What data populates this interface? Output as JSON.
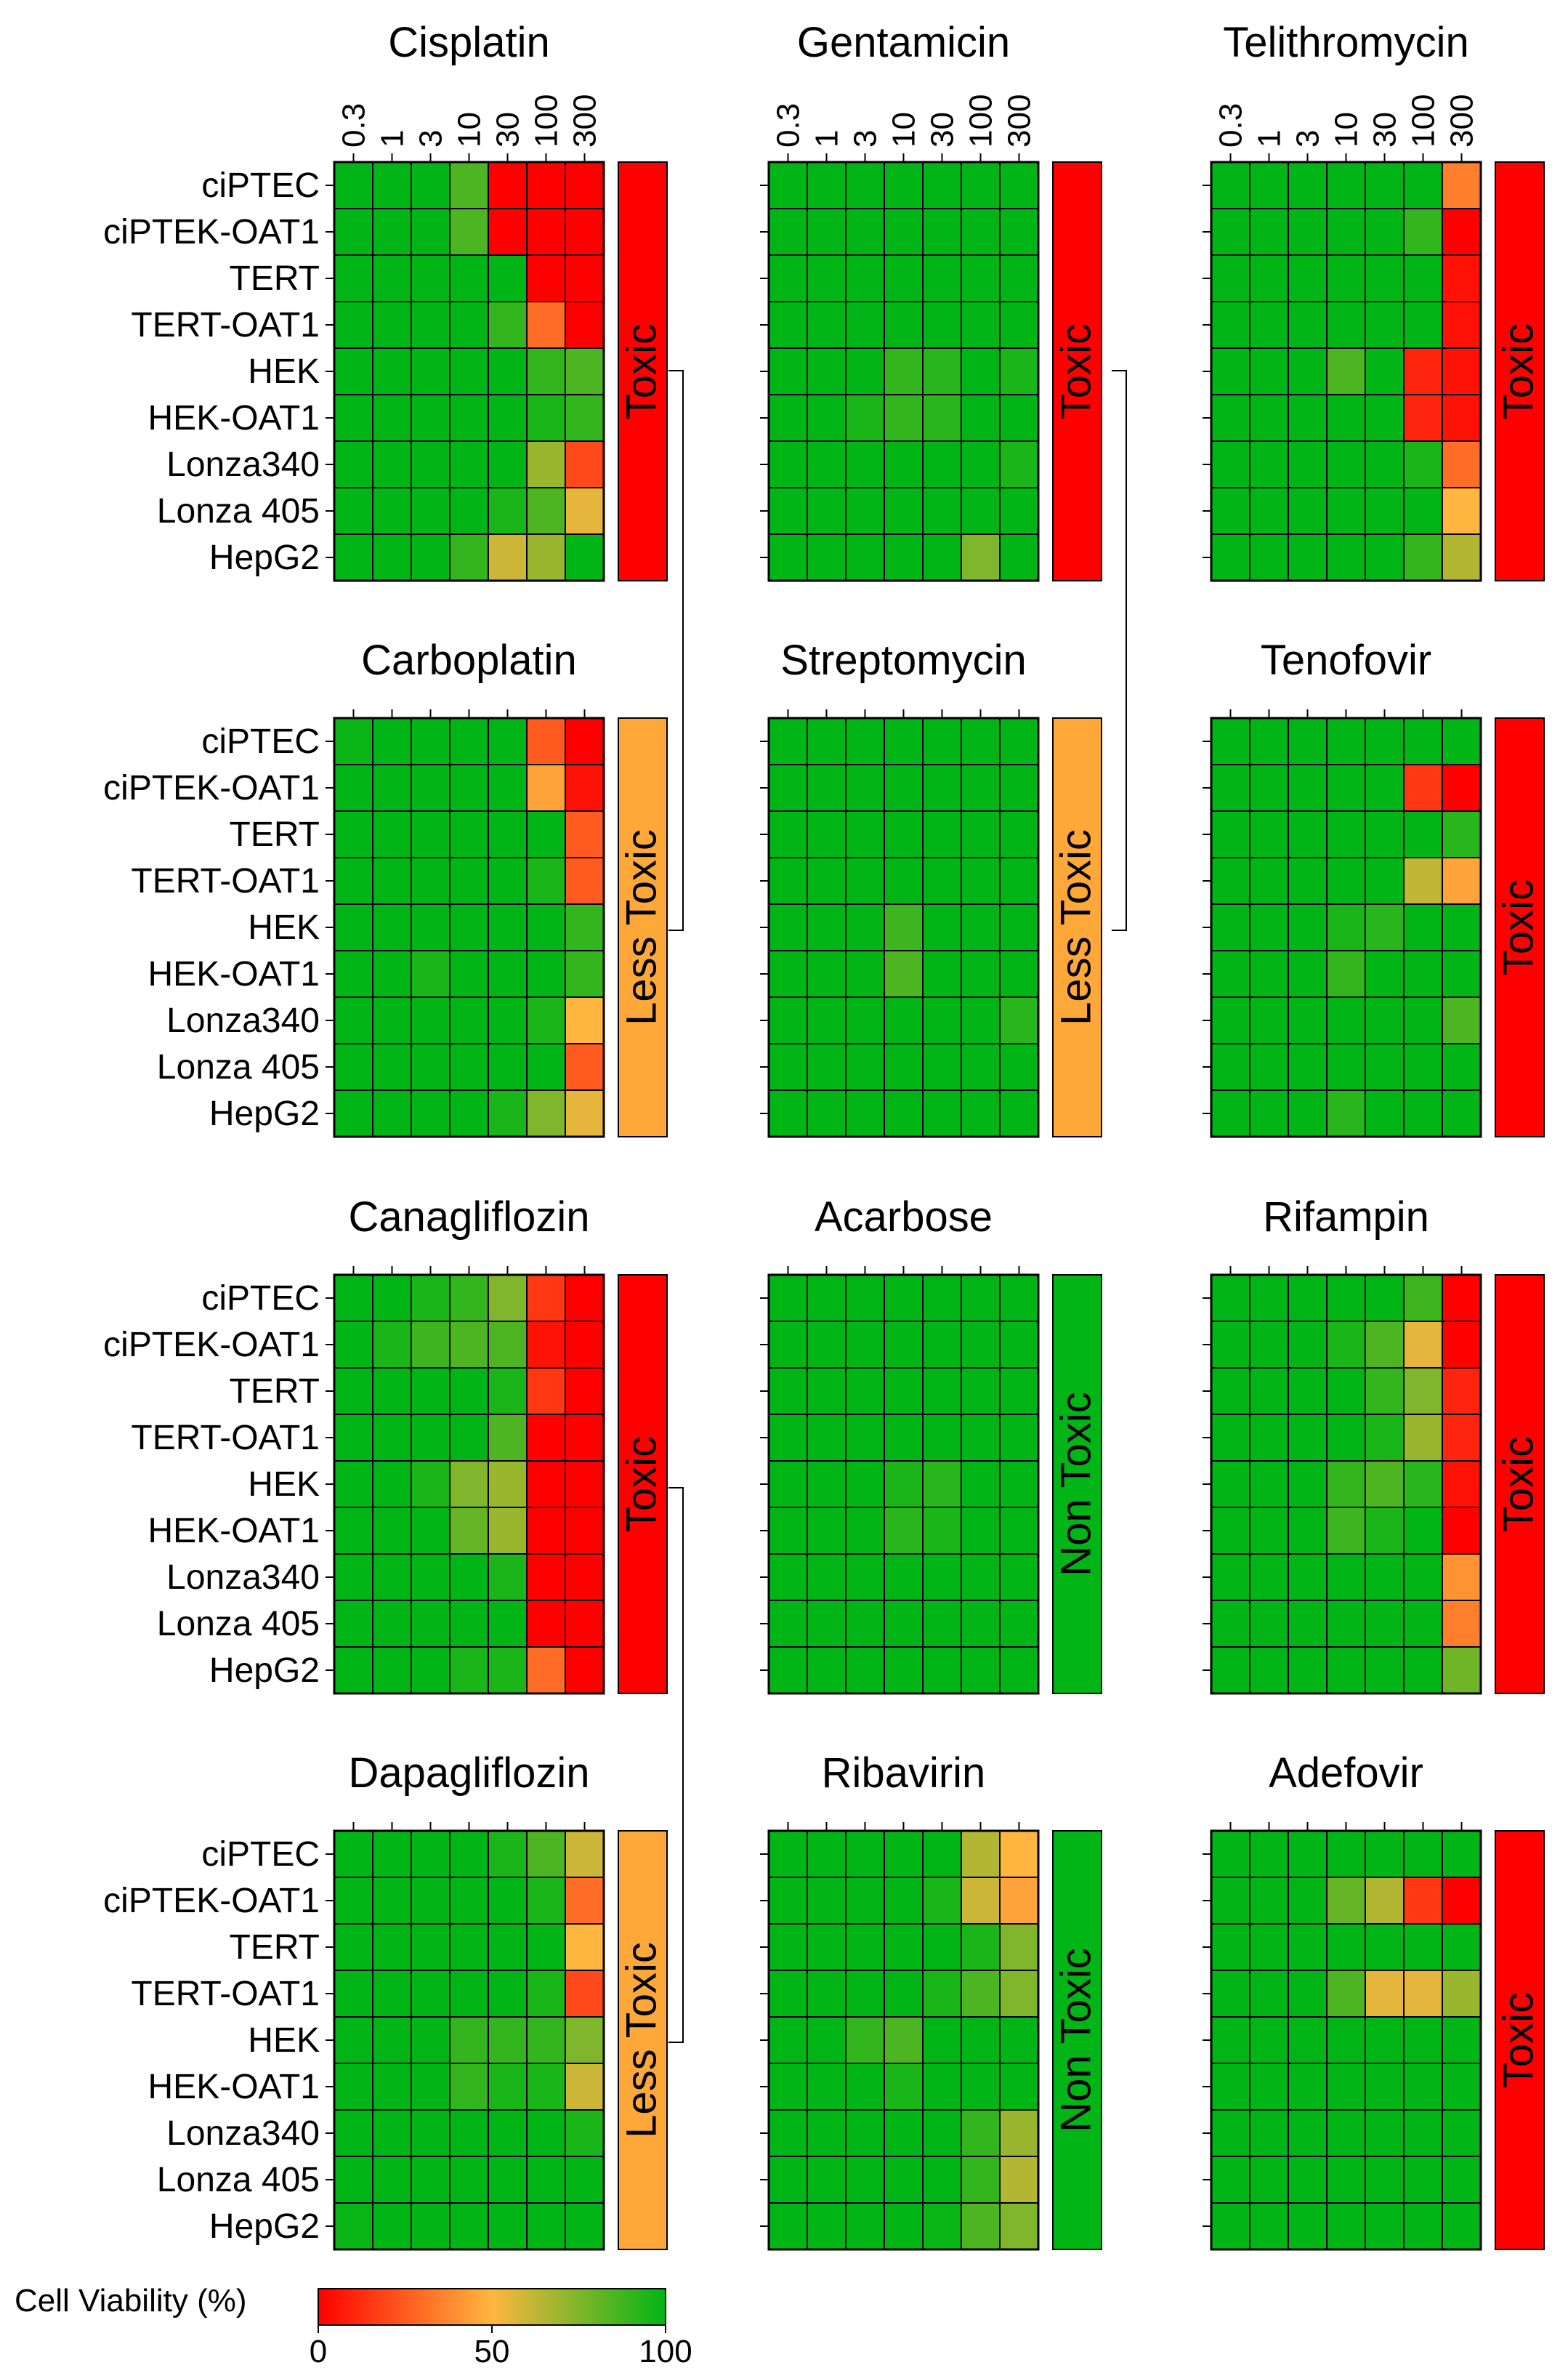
{
  "chart_data": {
    "type": "heatmap",
    "rows": [
      "ciPTEC",
      "ciPTEK-OAT1",
      "TERT",
      "TERT-OAT1",
      "HEK",
      "HEK-OAT1",
      "Lonza340",
      "Lonza 405",
      "HepG2"
    ],
    "columns": [
      "0.3",
      "1",
      "3",
      "10",
      "30",
      "100",
      "300"
    ],
    "colorbar": {
      "label": "Cell Viability (%)",
      "ticks": [
        "0",
        "50",
        "100"
      ],
      "range": [
        0,
        100
      ]
    },
    "category_colors": {
      "Toxic": "#ff0000",
      "Less Toxic": "#ffa83a",
      "Non Toxic": "#00b515"
    },
    "panels": [
      {
        "title": "Cisplatin",
        "category": "Toxic",
        "values": [
          [
            100,
            100,
            100,
            85,
            0,
            0,
            0
          ],
          [
            100,
            100,
            100,
            85,
            0,
            0,
            0
          ],
          [
            100,
            100,
            100,
            100,
            100,
            0,
            0
          ],
          [
            100,
            100,
            100,
            100,
            90,
            30,
            0
          ],
          [
            100,
            100,
            100,
            100,
            100,
            90,
            85
          ],
          [
            100,
            100,
            100,
            100,
            100,
            95,
            90
          ],
          [
            100,
            100,
            100,
            100,
            100,
            70,
            20
          ],
          [
            100,
            100,
            100,
            100,
            95,
            85,
            55
          ],
          [
            100,
            100,
            100,
            90,
            60,
            70,
            100
          ]
        ]
      },
      {
        "title": "Gentamicin",
        "category": "Toxic",
        "values": [
          [
            100,
            100,
            100,
            100,
            100,
            100,
            100
          ],
          [
            100,
            100,
            100,
            100,
            100,
            100,
            100
          ],
          [
            100,
            100,
            100,
            100,
            100,
            100,
            100
          ],
          [
            100,
            100,
            100,
            100,
            100,
            100,
            100
          ],
          [
            100,
            100,
            100,
            90,
            92,
            100,
            95
          ],
          [
            100,
            100,
            95,
            90,
            92,
            100,
            100
          ],
          [
            100,
            100,
            100,
            100,
            100,
            100,
            95
          ],
          [
            100,
            100,
            100,
            100,
            100,
            100,
            100
          ],
          [
            100,
            100,
            100,
            100,
            100,
            75,
            100
          ]
        ]
      },
      {
        "title": "Telithromycin",
        "category": "Toxic",
        "values": [
          [
            100,
            100,
            100,
            100,
            100,
            100,
            35
          ],
          [
            100,
            100,
            100,
            100,
            100,
            90,
            0
          ],
          [
            100,
            100,
            100,
            100,
            100,
            100,
            5
          ],
          [
            100,
            100,
            100,
            100,
            100,
            100,
            5
          ],
          [
            100,
            100,
            100,
            85,
            100,
            10,
            5
          ],
          [
            100,
            100,
            100,
            100,
            100,
            10,
            5
          ],
          [
            100,
            100,
            100,
            100,
            100,
            95,
            30
          ],
          [
            100,
            100,
            100,
            100,
            100,
            100,
            50
          ],
          [
            100,
            100,
            100,
            100,
            100,
            90,
            65
          ]
        ]
      },
      {
        "title": "Carboplatin",
        "category": "Less Toxic",
        "values": [
          [
            98,
            100,
            100,
            100,
            100,
            25,
            0
          ],
          [
            100,
            100,
            100,
            100,
            100,
            45,
            5
          ],
          [
            100,
            100,
            100,
            100,
            100,
            100,
            25
          ],
          [
            100,
            100,
            100,
            100,
            100,
            95,
            25
          ],
          [
            100,
            100,
            100,
            100,
            100,
            100,
            90
          ],
          [
            100,
            100,
            95,
            100,
            100,
            100,
            90
          ],
          [
            100,
            100,
            100,
            100,
            100,
            95,
            50
          ],
          [
            100,
            100,
            100,
            100,
            100,
            100,
            25
          ],
          [
            100,
            100,
            100,
            100,
            95,
            75,
            55
          ]
        ]
      },
      {
        "title": "Streptomycin",
        "category": "Less Toxic",
        "values": [
          [
            100,
            100,
            100,
            100,
            100,
            100,
            100
          ],
          [
            100,
            100,
            100,
            100,
            100,
            100,
            100
          ],
          [
            100,
            100,
            100,
            100,
            100,
            100,
            100
          ],
          [
            100,
            100,
            100,
            100,
            100,
            100,
            100
          ],
          [
            100,
            100,
            100,
            88,
            100,
            100,
            100
          ],
          [
            100,
            100,
            100,
            85,
            100,
            100,
            100
          ],
          [
            100,
            100,
            100,
            100,
            100,
            100,
            92
          ],
          [
            100,
            100,
            100,
            100,
            100,
            100,
            100
          ],
          [
            100,
            100,
            100,
            100,
            100,
            100,
            100
          ]
        ]
      },
      {
        "title": "Tenofovir",
        "category": "Toxic",
        "values": [
          [
            100,
            100,
            100,
            100,
            100,
            100,
            100
          ],
          [
            100,
            100,
            100,
            100,
            100,
            15,
            0
          ],
          [
            100,
            100,
            100,
            100,
            100,
            100,
            92
          ],
          [
            100,
            100,
            100,
            100,
            100,
            62,
            45
          ],
          [
            100,
            100,
            100,
            95,
            92,
            100,
            100
          ],
          [
            100,
            100,
            100,
            90,
            100,
            100,
            100
          ],
          [
            100,
            100,
            100,
            100,
            100,
            100,
            85
          ],
          [
            100,
            100,
            100,
            100,
            100,
            100,
            100
          ],
          [
            100,
            100,
            100,
            92,
            100,
            100,
            100
          ]
        ]
      },
      {
        "title": "Canagliflozin",
        "category": "Toxic",
        "values": [
          [
            100,
            100,
            95,
            90,
            75,
            15,
            0
          ],
          [
            100,
            95,
            88,
            85,
            85,
            5,
            0
          ],
          [
            100,
            100,
            100,
            100,
            95,
            15,
            0
          ],
          [
            100,
            100,
            100,
            100,
            85,
            0,
            0
          ],
          [
            100,
            100,
            95,
            75,
            70,
            0,
            0
          ],
          [
            100,
            100,
            100,
            80,
            70,
            0,
            0
          ],
          [
            100,
            100,
            100,
            100,
            95,
            0,
            0
          ],
          [
            100,
            100,
            100,
            100,
            100,
            0,
            0
          ],
          [
            100,
            100,
            100,
            95,
            95,
            30,
            0
          ]
        ]
      },
      {
        "title": "Acarbose",
        "category": "Non Toxic",
        "values": [
          [
            100,
            100,
            100,
            100,
            100,
            100,
            100
          ],
          [
            100,
            100,
            100,
            100,
            100,
            100,
            100
          ],
          [
            100,
            100,
            100,
            100,
            100,
            100,
            100
          ],
          [
            100,
            100,
            100,
            100,
            100,
            100,
            100
          ],
          [
            100,
            100,
            100,
            95,
            92,
            100,
            100
          ],
          [
            100,
            100,
            100,
            92,
            95,
            100,
            100
          ],
          [
            100,
            100,
            100,
            100,
            100,
            100,
            100
          ],
          [
            100,
            100,
            100,
            100,
            100,
            100,
            100
          ],
          [
            100,
            100,
            100,
            100,
            100,
            100,
            100
          ]
        ]
      },
      {
        "title": "Rifampin",
        "category": "Toxic",
        "values": [
          [
            100,
            100,
            100,
            100,
            100,
            88,
            0
          ],
          [
            100,
            100,
            100,
            95,
            85,
            55,
            0
          ],
          [
            100,
            100,
            100,
            100,
            90,
            75,
            10
          ],
          [
            100,
            100,
            100,
            100,
            95,
            70,
            10
          ],
          [
            100,
            100,
            100,
            90,
            85,
            92,
            5
          ],
          [
            100,
            100,
            100,
            88,
            95,
            100,
            0
          ],
          [
            100,
            100,
            100,
            100,
            100,
            100,
            40
          ],
          [
            100,
            100,
            100,
            100,
            100,
            100,
            35
          ],
          [
            100,
            100,
            100,
            100,
            100,
            100,
            78
          ]
        ]
      },
      {
        "title": "Dapagliflozin",
        "category": "Less Toxic",
        "values": [
          [
            100,
            100,
            100,
            100,
            95,
            85,
            60
          ],
          [
            100,
            100,
            100,
            100,
            100,
            95,
            30
          ],
          [
            100,
            100,
            100,
            100,
            100,
            100,
            50
          ],
          [
            100,
            100,
            100,
            100,
            100,
            95,
            20
          ],
          [
            100,
            100,
            100,
            90,
            90,
            90,
            75
          ],
          [
            100,
            100,
            100,
            90,
            95,
            95,
            60
          ],
          [
            100,
            100,
            100,
            100,
            100,
            100,
            95
          ],
          [
            100,
            100,
            100,
            100,
            100,
            100,
            100
          ],
          [
            98,
            100,
            100,
            100,
            100,
            100,
            100
          ]
        ]
      },
      {
        "title": "Ribavirin",
        "category": "Non Toxic",
        "values": [
          [
            100,
            100,
            100,
            100,
            100,
            65,
            50
          ],
          [
            100,
            100,
            100,
            100,
            95,
            60,
            45
          ],
          [
            100,
            100,
            100,
            100,
            100,
            95,
            75
          ],
          [
            100,
            100,
            100,
            100,
            95,
            85,
            75
          ],
          [
            100,
            100,
            90,
            85,
            100,
            100,
            100
          ],
          [
            100,
            100,
            100,
            95,
            100,
            100,
            100
          ],
          [
            100,
            100,
            100,
            100,
            100,
            90,
            70
          ],
          [
            100,
            100,
            100,
            100,
            100,
            90,
            65
          ],
          [
            100,
            100,
            100,
            100,
            98,
            85,
            75
          ]
        ]
      },
      {
        "title": "Adefovir",
        "category": "Toxic",
        "values": [
          [
            100,
            100,
            100,
            100,
            100,
            100,
            100
          ],
          [
            100,
            100,
            100,
            80,
            65,
            15,
            0
          ],
          [
            100,
            100,
            100,
            100,
            100,
            100,
            100
          ],
          [
            100,
            100,
            100,
            85,
            55,
            55,
            70
          ],
          [
            100,
            100,
            100,
            100,
            100,
            100,
            100
          ],
          [
            100,
            100,
            100,
            100,
            100,
            100,
            100
          ],
          [
            100,
            100,
            100,
            100,
            100,
            100,
            100
          ],
          [
            100,
            100,
            100,
            100,
            100,
            100,
            100
          ],
          [
            100,
            100,
            100,
            100,
            100,
            100,
            100
          ]
        ]
      }
    ]
  }
}
